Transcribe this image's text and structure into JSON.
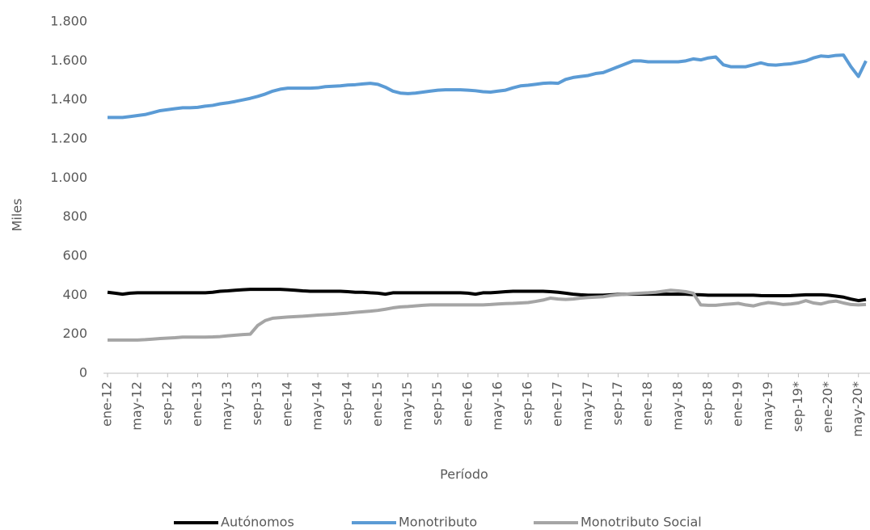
{
  "chart_data": {
    "type": "line",
    "y_label": "Miles",
    "x_label": "Período",
    "ylim": [
      0,
      1800
    ],
    "yticks": [
      0,
      200,
      400,
      600,
      800,
      {
        "value": 1000,
        "label": "1.000"
      },
      {
        "value": 1200,
        "label": "1.200"
      },
      {
        "value": 1400,
        "label": "1.400"
      },
      {
        "value": 1600,
        "label": "1.600"
      },
      {
        "value": 1800,
        "label": "1.800"
      }
    ],
    "grid": false,
    "legend": "bottom",
    "categories": [
      "ene-12",
      null,
      null,
      null,
      "may-12",
      null,
      null,
      null,
      "sep-12",
      null,
      null,
      null,
      "ene-13",
      null,
      null,
      null,
      "may-13",
      null,
      null,
      null,
      "sep-13",
      null,
      null,
      null,
      "ene-14",
      null,
      null,
      null,
      "may-14",
      null,
      null,
      null,
      "sep-14",
      null,
      null,
      null,
      "ene-15",
      null,
      null,
      null,
      "may-15",
      null,
      null,
      null,
      "sep-15",
      null,
      null,
      null,
      "ene-16",
      null,
      null,
      null,
      "may-16",
      null,
      null,
      null,
      "sep-16",
      null,
      null,
      null,
      "ene-17",
      null,
      null,
      null,
      "may-17",
      null,
      null,
      null,
      "sep-17",
      null,
      null,
      null,
      "ene-18",
      null,
      null,
      null,
      "may-18",
      null,
      null,
      null,
      "sep-18",
      null,
      null,
      null,
      "ene-19",
      null,
      null,
      null,
      "may-19",
      null,
      null,
      null,
      "sep-19*",
      null,
      null,
      null,
      "ene-20*",
      null,
      null,
      null,
      "may-20*",
      null
    ],
    "series": [
      {
        "name": "Autónomos",
        "color": "#000000",
        "values": [
          415,
          410,
          405,
          410,
          412,
          412,
          412,
          412,
          412,
          412,
          412,
          412,
          412,
          412,
          415,
          420,
          422,
          425,
          428,
          430,
          430,
          430,
          430,
          430,
          428,
          425,
          422,
          420,
          420,
          420,
          420,
          420,
          418,
          415,
          415,
          412,
          410,
          405,
          412,
          412,
          412,
          412,
          412,
          412,
          412,
          412,
          412,
          412,
          410,
          405,
          412,
          412,
          415,
          418,
          420,
          420,
          420,
          420,
          420,
          418,
          415,
          410,
          405,
          402,
          400,
          400,
          400,
          402,
          404,
          405,
          405,
          405,
          405,
          405,
          405,
          405,
          405,
          405,
          403,
          402,
          400,
          400,
          400,
          400,
          400,
          400,
          400,
          398,
          397,
          397,
          397,
          398,
          400,
          402,
          402,
          402,
          400,
          395,
          390,
          380,
          372,
          378
        ]
      },
      {
        "name": "Monotributo",
        "color": "#5b9bd5",
        "values": [
          1310,
          1310,
          1310,
          1315,
          1320,
          1325,
          1335,
          1345,
          1350,
          1355,
          1360,
          1360,
          1362,
          1368,
          1372,
          1380,
          1385,
          1392,
          1400,
          1408,
          1418,
          1430,
          1445,
          1455,
          1460,
          1460,
          1460,
          1460,
          1462,
          1468,
          1470,
          1472,
          1476,
          1478,
          1482,
          1485,
          1480,
          1465,
          1445,
          1435,
          1432,
          1435,
          1440,
          1445,
          1450,
          1452,
          1452,
          1452,
          1450,
          1447,
          1442,
          1440,
          1445,
          1450,
          1462,
          1472,
          1475,
          1480,
          1485,
          1487,
          1485,
          1505,
          1515,
          1520,
          1525,
          1535,
          1540,
          1555,
          1570,
          1585,
          1600,
          1600,
          1595,
          1595,
          1595,
          1595,
          1595,
          1600,
          1610,
          1605,
          1615,
          1620,
          1580,
          1570,
          1570,
          1570,
          1580,
          1590,
          1580,
          1578,
          1582,
          1585,
          1592,
          1600,
          1615,
          1625,
          1622,
          1628,
          1630,
          1570,
          1520,
          1600
        ]
      },
      {
        "name": "Monotributo Social",
        "color": "#a5a5a5",
        "values": [
          170,
          170,
          170,
          170,
          170,
          172,
          175,
          178,
          180,
          182,
          185,
          185,
          185,
          185,
          186,
          188,
          192,
          195,
          198,
          200,
          245,
          270,
          282,
          285,
          288,
          290,
          292,
          295,
          298,
          300,
          302,
          305,
          308,
          312,
          315,
          318,
          322,
          328,
          335,
          340,
          342,
          345,
          348,
          350,
          350,
          350,
          350,
          350,
          350,
          350,
          350,
          352,
          355,
          357,
          358,
          360,
          362,
          368,
          375,
          385,
          380,
          378,
          380,
          385,
          388,
          390,
          392,
          398,
          402,
          405,
          408,
          410,
          412,
          415,
          420,
          425,
          422,
          418,
          410,
          350,
          348,
          348,
          352,
          355,
          358,
          350,
          345,
          355,
          362,
          358,
          352,
          355,
          360,
          372,
          360,
          355,
          365,
          370,
          360,
          352,
          350,
          352
        ]
      }
    ]
  }
}
